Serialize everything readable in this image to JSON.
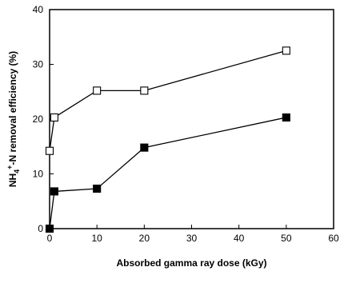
{
  "chart_data": {
    "type": "line",
    "title": "",
    "xlabel": "Absorbed gamma ray dose (kGy)",
    "ylabel": {
      "prefix": "NH",
      "sub": "4",
      "sup": "+",
      "suffix": "-N removal efficiency (%)"
    },
    "xlim": [
      0,
      60
    ],
    "ylim": [
      0,
      40
    ],
    "xticks": [
      "0",
      "10",
      "20",
      "30",
      "40",
      "50",
      "60"
    ],
    "yticks": [
      "0",
      "10",
      "20",
      "30",
      "40"
    ],
    "grid": false,
    "legend": "none",
    "series": [
      {
        "marker": "open-square",
        "color": "#000000",
        "x": [
          0,
          1,
          10,
          20,
          50
        ],
        "y": [
          14.2,
          20.3,
          25.2,
          25.2,
          32.5
        ]
      },
      {
        "marker": "filled-square",
        "color": "#000000",
        "x": [
          0,
          1,
          10,
          20,
          50
        ],
        "y": [
          0,
          6.8,
          7.3,
          14.8,
          20.3
        ]
      }
    ]
  }
}
